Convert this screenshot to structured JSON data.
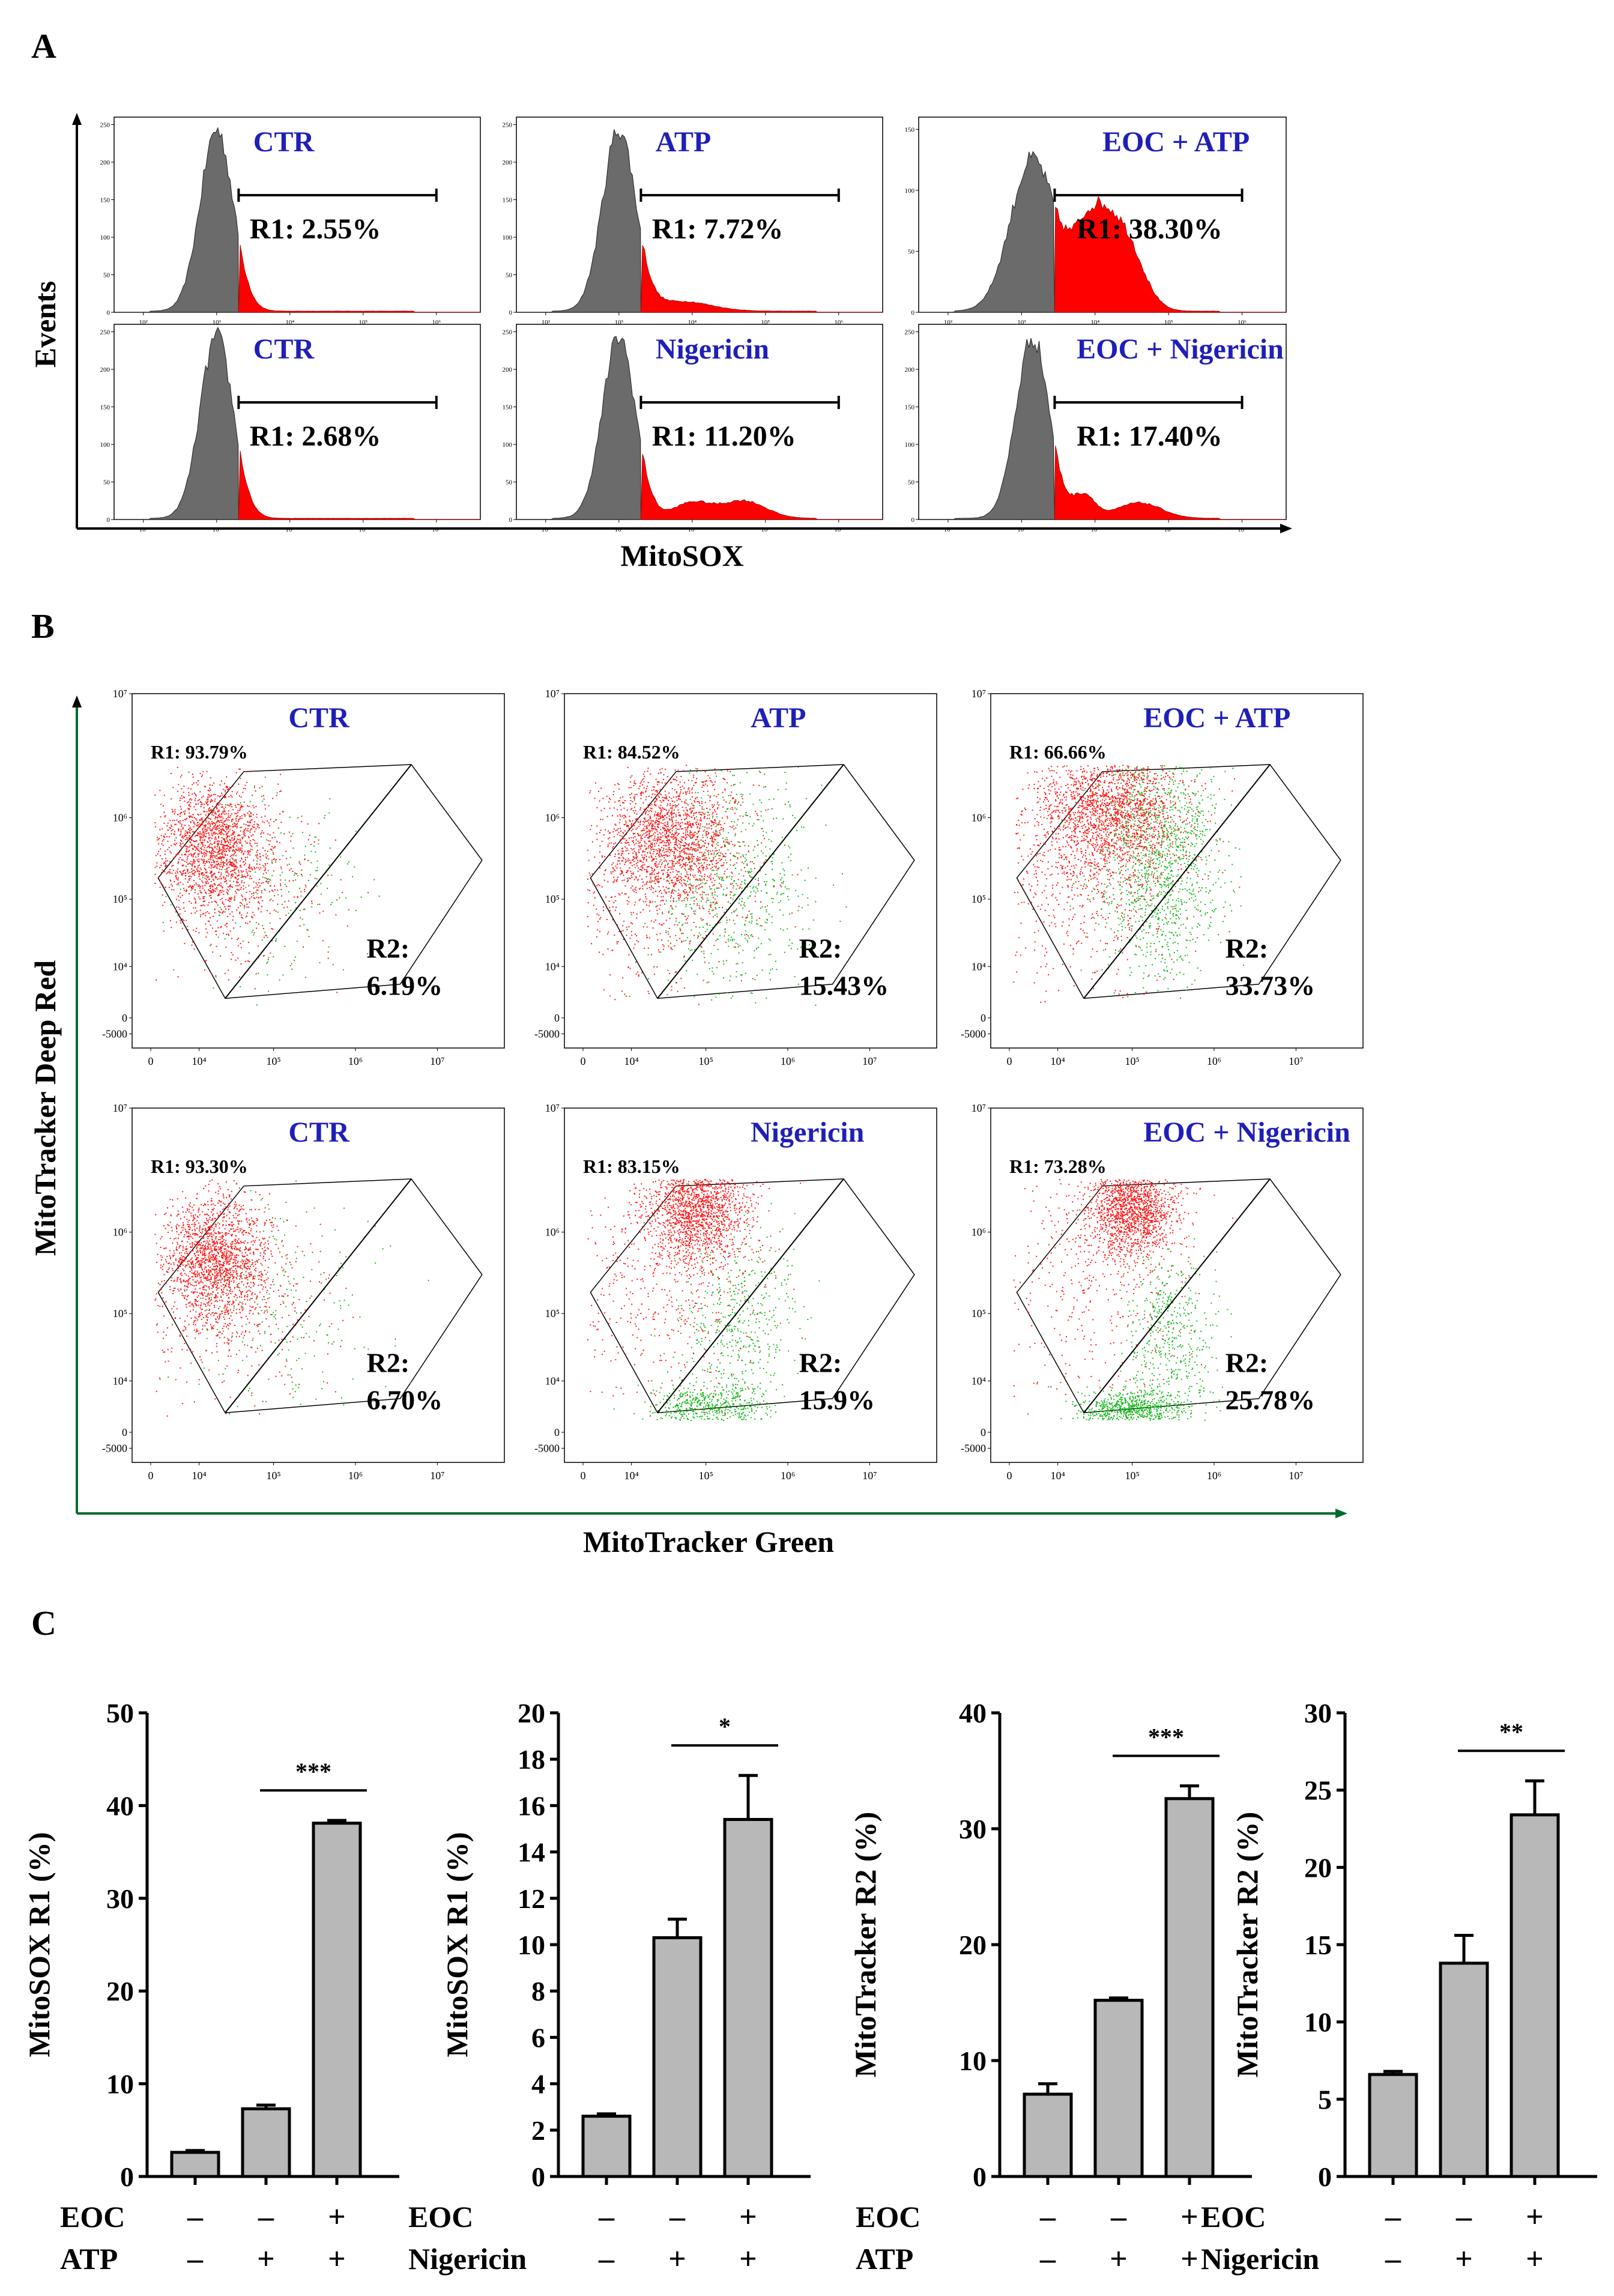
{
  "panel_labels": [
    "A",
    "B",
    "C"
  ],
  "colors": {
    "condition_text": "#1f1fb8",
    "hist_fill": "#6b6b6b",
    "hist_gated": "#ff0000",
    "dot_red": "#ff1a1a",
    "dot_green": "#19b81e",
    "bar_fill": "#b8b8b8",
    "axis_green": "#006b2f"
  },
  "chart_data": [
    {
      "panel": "A",
      "type": "histogram",
      "xlabel": "MitoSOX",
      "ylabel": "Events",
      "x_ticks": [
        "10²",
        "10³",
        "10⁴",
        "10⁵",
        "10⁶"
      ],
      "plots": [
        {
          "condition": "CTR",
          "gate": "R1",
          "gate_label": "R1: 2.55%",
          "gate_percent": 2.55,
          "y_ticks": [
            "0",
            "50",
            "100",
            "150",
            "200",
            "250"
          ]
        },
        {
          "condition": "ATP",
          "gate": "R1",
          "gate_label": "R1: 7.72%",
          "gate_percent": 7.72,
          "y_ticks": [
            "0",
            "50",
            "100",
            "150",
            "200",
            "250"
          ]
        },
        {
          "condition": "EOC + ATP",
          "gate": "R1",
          "gate_label": "R1: 38.30%",
          "gate_percent": 38.3,
          "y_ticks": [
            "0",
            "50",
            "100",
            "150"
          ]
        },
        {
          "condition": "CTR",
          "gate": "R1",
          "gate_label": "R1: 2.68%",
          "gate_percent": 2.68,
          "y_ticks": [
            "0",
            "50",
            "100",
            "150",
            "200",
            "250"
          ]
        },
        {
          "condition": "Nigericin",
          "gate": "R1",
          "gate_label": "R1: 11.20%",
          "gate_percent": 11.2,
          "y_ticks": [
            "0",
            "50",
            "100",
            "150",
            "200",
            "250"
          ]
        },
        {
          "condition": "EOC + Nigericin",
          "gate": "R1",
          "gate_label": "R1: 17.40%",
          "gate_percent": 17.4,
          "y_ticks": [
            "0",
            "50",
            "100",
            "150",
            "200",
            "250"
          ]
        }
      ]
    },
    {
      "panel": "B",
      "type": "scatter",
      "xlabel": "MitoTracker Green",
      "ylabel": "MitoTracker Deep Red",
      "x_ticks": [
        "0",
        "10⁴",
        "10⁵",
        "10⁶",
        "10⁷"
      ],
      "y_ticks": [
        "-5000",
        "0",
        "10⁴",
        "10⁵",
        "10⁶",
        "10⁷"
      ],
      "plots": [
        {
          "condition": "CTR",
          "r1_label": "R1: 93.79%",
          "r1": 93.79,
          "r2_name": "R2:",
          "r2_value": "6.19%",
          "r2": 6.19
        },
        {
          "condition": "ATP",
          "r1_label": "R1: 84.52%",
          "r1": 84.52,
          "r2_name": "R2:",
          "r2_value": "15.43%",
          "r2": 15.43
        },
        {
          "condition": "EOC + ATP",
          "r1_label": "R1: 66.66%",
          "r1": 66.66,
          "r2_name": "R2:",
          "r2_value": "33.73%",
          "r2": 33.73
        },
        {
          "condition": "CTR",
          "r1_label": "R1: 93.30%",
          "r1": 93.3,
          "r2_name": "R2:",
          "r2_value": "6.70%",
          "r2": 6.7
        },
        {
          "condition": "Nigericin",
          "r1_label": "R1: 83.15%",
          "r1": 83.15,
          "r2_name": "R2:",
          "r2_value": "15.9%",
          "r2": 15.9
        },
        {
          "condition": "EOC + Nigericin",
          "r1_label": "R1: 73.28%",
          "r1": 73.28,
          "r2_name": "R2:",
          "r2_value": "25.78%",
          "r2": 25.78
        }
      ]
    },
    {
      "panel": "C",
      "type": "bar",
      "charts": [
        {
          "ylabel": "MitoSOX R1 (%)",
          "ylim": [
            0,
            50
          ],
          "yticks": [
            0,
            10,
            20,
            30,
            40,
            50
          ],
          "values": [
            2.6,
            7.3,
            38.1
          ],
          "errors": [
            0.2,
            0.4,
            0.3
          ],
          "sig": "***",
          "sig_from": 1,
          "sig_to": 2,
          "rows": [
            {
              "label": "EOC",
              "signs": [
                "–",
                "–",
                "+"
              ]
            },
            {
              "label": "ATP",
              "signs": [
                "–",
                "+",
                "+"
              ]
            }
          ]
        },
        {
          "ylabel": "MitoSOX R1 (%)",
          "ylim": [
            0,
            20
          ],
          "yticks": [
            0,
            2,
            4,
            6,
            8,
            10,
            12,
            14,
            16,
            18,
            20
          ],
          "values": [
            2.6,
            10.3,
            15.4
          ],
          "errors": [
            0.1,
            0.8,
            1.9
          ],
          "sig": "*",
          "sig_from": 1,
          "sig_to": 2,
          "rows": [
            {
              "label": "EOC",
              "signs": [
                "–",
                "–",
                "+"
              ]
            },
            {
              "label": "Nigericin",
              "signs": [
                "–",
                "+",
                "+"
              ]
            }
          ]
        },
        {
          "ylabel": "MitoTracker R2 (%)",
          "ylim": [
            0,
            40
          ],
          "yticks": [
            0,
            10,
            20,
            30,
            40
          ],
          "values": [
            7.1,
            15.2,
            32.6
          ],
          "errors": [
            0.9,
            0.2,
            1.1
          ],
          "sig": "***",
          "sig_from": 1,
          "sig_to": 2,
          "rows": [
            {
              "label": "EOC",
              "signs": [
                "–",
                "–",
                "+"
              ]
            },
            {
              "label": "ATP",
              "signs": [
                "–",
                "+",
                "+"
              ]
            }
          ]
        },
        {
          "ylabel": "MitoTracker R2 (%)",
          "ylim": [
            0,
            30
          ],
          "yticks": [
            0,
            5,
            10,
            15,
            20,
            25,
            30
          ],
          "values": [
            6.6,
            13.8,
            23.4
          ],
          "errors": [
            0.2,
            1.8,
            2.2
          ],
          "sig": "**",
          "sig_from": 1,
          "sig_to": 2,
          "rows": [
            {
              "label": "EOC",
              "signs": [
                "–",
                "–",
                "+"
              ]
            },
            {
              "label": "Nigericin",
              "signs": [
                "–",
                "+",
                "+"
              ]
            }
          ]
        }
      ]
    }
  ]
}
